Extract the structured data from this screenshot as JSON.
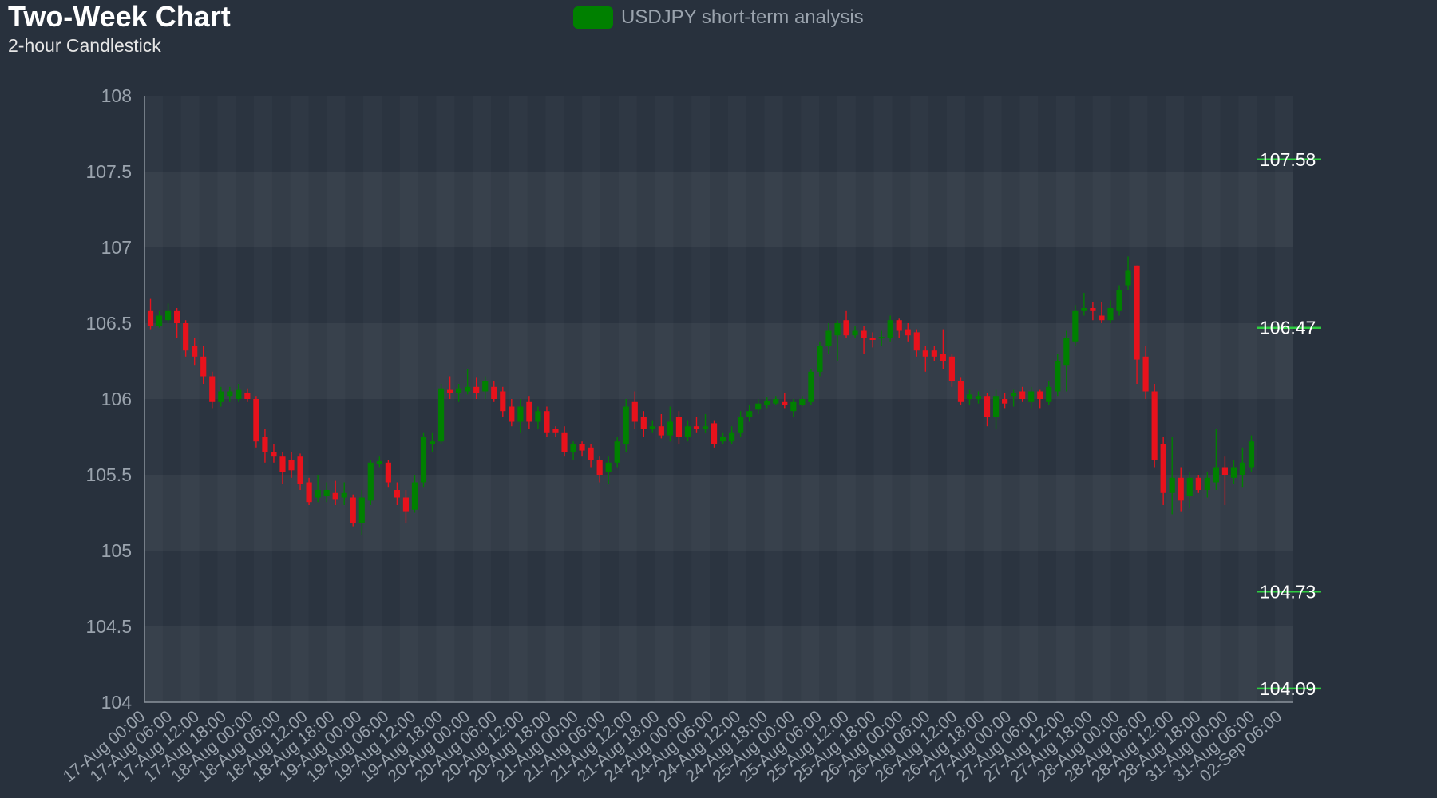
{
  "header": {
    "title": "Two-Week Chart",
    "subtitle": "2-hour Candlestick"
  },
  "legend": {
    "label": "USDJPY short-term analysis",
    "color": "#008000"
  },
  "colors": {
    "up": "#008000",
    "down": "#e8121c",
    "background": "#28313d",
    "level_line": "#2ecc40"
  },
  "chart_data": {
    "type": "candlestick",
    "title": "Two-Week Chart",
    "subtitle": "2-hour Candlestick",
    "series_name": "USDJPY short-term analysis",
    "ylim": [
      104,
      108
    ],
    "yticks": [
      "104",
      "104.5",
      "105",
      "105.5",
      "106",
      "106.5",
      "107",
      "107.5",
      "108"
    ],
    "xtick_labels": [
      "17-Aug 00:00",
      "17-Aug 06:00",
      "17-Aug 12:00",
      "17-Aug 18:00",
      "18-Aug 00:00",
      "18-Aug 06:00",
      "18-Aug 12:00",
      "18-Aug 18:00",
      "19-Aug 00:00",
      "19-Aug 06:00",
      "19-Aug 12:00",
      "19-Aug 18:00",
      "20-Aug 00:00",
      "20-Aug 06:00",
      "20-Aug 12:00",
      "20-Aug 18:00",
      "21-Aug 00:00",
      "21-Aug 06:00",
      "21-Aug 12:00",
      "21-Aug 18:00",
      "24-Aug 00:00",
      "24-Aug 06:00",
      "24-Aug 12:00",
      "24-Aug 18:00",
      "25-Aug 00:00",
      "25-Aug 06:00",
      "25-Aug 12:00",
      "25-Aug 18:00",
      "26-Aug 00:00",
      "26-Aug 06:00",
      "26-Aug 12:00",
      "26-Aug 18:00",
      "27-Aug 00:00",
      "27-Aug 06:00",
      "27-Aug 12:00",
      "27-Aug 18:00",
      "28-Aug 00:00",
      "28-Aug 06:00",
      "28-Aug 12:00",
      "28-Aug 18:00",
      "31-Aug 00:00",
      "31-Aug 06:00",
      "02-Sep 06:00"
    ],
    "levels": [
      107.58,
      106.47,
      104.73,
      104.09
    ],
    "grid": true,
    "legend_position": "top-center",
    "candles": [
      [
        106.58,
        106.48,
        106.66,
        106.46
      ],
      [
        106.48,
        106.55,
        106.58,
        106.47
      ],
      [
        106.52,
        106.58,
        106.63,
        106.5
      ],
      [
        106.58,
        106.5,
        106.6,
        106.4
      ],
      [
        106.5,
        106.32,
        106.52,
        106.28
      ],
      [
        106.35,
        106.28,
        106.4,
        106.22
      ],
      [
        106.28,
        106.15,
        106.35,
        106.1
      ],
      [
        106.15,
        105.98,
        106.18,
        105.94
      ],
      [
        105.98,
        106.05,
        106.08,
        105.95
      ],
      [
        106.02,
        106.05,
        106.08,
        105.98
      ],
      [
        106.0,
        106.06,
        106.1,
        105.98
      ],
      [
        106.04,
        106.0,
        106.07,
        105.98
      ],
      [
        106.0,
        105.72,
        106.02,
        105.68
      ],
      [
        105.75,
        105.65,
        105.8,
        105.58
      ],
      [
        105.65,
        105.62,
        105.7,
        105.58
      ],
      [
        105.62,
        105.52,
        105.65,
        105.44
      ],
      [
        105.6,
        105.53,
        105.65,
        105.48
      ],
      [
        105.62,
        105.44,
        105.64,
        105.4
      ],
      [
        105.45,
        105.32,
        105.48,
        105.3
      ],
      [
        105.35,
        105.4,
        105.5,
        105.32
      ],
      [
        105.36,
        105.4,
        105.45,
        105.32
      ],
      [
        105.38,
        105.34,
        105.46,
        105.3
      ],
      [
        105.35,
        105.38,
        105.45,
        105.3
      ],
      [
        105.35,
        105.18,
        105.37,
        105.16
      ],
      [
        105.18,
        105.35,
        105.4,
        105.1
      ],
      [
        105.33,
        105.58,
        105.6,
        105.3
      ],
      [
        105.57,
        105.59,
        105.62,
        105.55
      ],
      [
        105.58,
        105.45,
        105.6,
        105.42
      ],
      [
        105.4,
        105.35,
        105.45,
        105.3
      ],
      [
        105.35,
        105.26,
        105.4,
        105.18
      ],
      [
        105.27,
        105.45,
        105.5,
        105.25
      ],
      [
        105.45,
        105.75,
        105.78,
        105.42
      ],
      [
        105.7,
        105.72,
        105.78,
        105.65
      ],
      [
        105.72,
        106.07,
        106.1,
        105.7
      ],
      [
        106.06,
        106.04,
        106.15,
        106.0
      ],
      [
        106.04,
        106.07,
        106.1,
        105.98
      ],
      [
        106.05,
        106.08,
        106.2,
        106.03
      ],
      [
        106.08,
        106.04,
        106.14,
        106.0
      ],
      [
        106.05,
        106.12,
        106.15,
        106.0
      ],
      [
        106.08,
        106.0,
        106.12,
        105.98
      ],
      [
        106.05,
        105.92,
        106.08,
        105.88
      ],
      [
        105.95,
        105.85,
        106.0,
        105.82
      ],
      [
        105.85,
        105.95,
        106.0,
        105.78
      ],
      [
        105.98,
        105.85,
        106.02,
        105.8
      ],
      [
        105.85,
        105.92,
        105.95,
        105.8
      ],
      [
        105.92,
        105.78,
        105.95,
        105.75
      ],
      [
        105.8,
        105.78,
        105.82,
        105.75
      ],
      [
        105.78,
        105.65,
        105.82,
        105.62
      ],
      [
        105.65,
        105.7,
        105.72,
        105.6
      ],
      [
        105.7,
        105.66,
        105.72,
        105.62
      ],
      [
        105.68,
        105.6,
        105.7,
        105.55
      ],
      [
        105.6,
        105.5,
        105.62,
        105.45
      ],
      [
        105.52,
        105.58,
        105.62,
        105.44
      ],
      [
        105.58,
        105.72,
        105.75,
        105.55
      ],
      [
        105.7,
        105.95,
        106.0,
        105.65
      ],
      [
        105.98,
        105.85,
        106.05,
        105.8
      ],
      [
        105.88,
        105.8,
        105.92,
        105.75
      ],
      [
        105.8,
        105.82,
        105.86,
        105.78
      ],
      [
        105.82,
        105.76,
        105.9,
        105.74
      ],
      [
        105.76,
        105.85,
        105.95,
        105.72
      ],
      [
        105.88,
        105.75,
        105.92,
        105.7
      ],
      [
        105.75,
        105.82,
        105.86,
        105.72
      ],
      [
        105.82,
        105.8,
        105.88,
        105.78
      ],
      [
        105.8,
        105.82,
        105.9,
        105.78
      ],
      [
        105.84,
        105.7,
        105.86,
        105.68
      ],
      [
        105.72,
        105.75,
        105.78,
        105.7
      ],
      [
        105.72,
        105.78,
        105.82,
        105.7
      ],
      [
        105.78,
        105.88,
        105.92,
        105.75
      ],
      [
        105.88,
        105.92,
        105.96,
        105.85
      ],
      [
        105.93,
        105.97,
        106.0,
        105.9
      ],
      [
        105.96,
        105.99,
        106.01,
        105.94
      ],
      [
        105.97,
        106.0,
        106.02,
        105.96
      ],
      [
        105.98,
        105.96,
        106.04,
        105.94
      ],
      [
        105.92,
        105.98,
        106.0,
        105.88
      ],
      [
        105.96,
        106.0,
        106.02,
        105.95
      ],
      [
        105.98,
        106.18,
        106.2,
        105.96
      ],
      [
        106.18,
        106.35,
        106.38,
        106.15
      ],
      [
        106.35,
        106.45,
        106.5,
        106.3
      ],
      [
        106.42,
        106.5,
        106.52,
        106.25
      ],
      [
        106.52,
        106.42,
        106.58,
        106.4
      ],
      [
        106.42,
        106.45,
        106.48,
        106.4
      ],
      [
        106.45,
        106.4,
        106.48,
        106.3
      ],
      [
        106.4,
        106.39,
        106.44,
        106.34
      ],
      [
        106.4,
        106.41,
        106.45,
        106.35
      ],
      [
        106.4,
        106.52,
        106.55,
        106.38
      ],
      [
        106.52,
        106.45,
        106.53,
        106.4
      ],
      [
        106.46,
        106.42,
        106.5,
        106.38
      ],
      [
        106.44,
        106.32,
        106.46,
        106.28
      ],
      [
        106.32,
        106.28,
        106.35,
        106.18
      ],
      [
        106.32,
        106.28,
        106.35,
        106.25
      ],
      [
        106.3,
        106.25,
        106.46,
        106.2
      ],
      [
        106.28,
        106.12,
        106.3,
        106.08
      ],
      [
        106.12,
        105.98,
        106.14,
        105.96
      ],
      [
        106.0,
        106.03,
        106.06,
        105.96
      ],
      [
        106.0,
        106.02,
        106.05,
        105.97
      ],
      [
        106.02,
        105.88,
        106.04,
        105.82
      ],
      [
        105.88,
        106.02,
        106.06,
        105.8
      ],
      [
        106.0,
        105.97,
        106.04,
        105.94
      ],
      [
        106.02,
        106.04,
        106.06,
        105.95
      ],
      [
        106.05,
        106.0,
        106.08,
        105.98
      ],
      [
        105.98,
        106.05,
        106.08,
        105.94
      ],
      [
        106.05,
        106.0,
        106.06,
        105.94
      ],
      [
        105.98,
        106.08,
        106.12,
        105.96
      ],
      [
        106.05,
        106.25,
        106.3,
        106.02
      ],
      [
        106.22,
        106.4,
        106.45,
        106.05
      ],
      [
        106.38,
        106.58,
        106.62,
        106.35
      ],
      [
        106.58,
        106.6,
        106.7,
        106.55
      ],
      [
        106.6,
        106.58,
        106.64,
        106.52
      ],
      [
        106.55,
        106.52,
        106.64,
        106.5
      ],
      [
        106.52,
        106.6,
        106.65,
        106.5
      ],
      [
        106.58,
        106.72,
        106.75,
        106.55
      ],
      [
        106.75,
        106.85,
        106.94,
        106.72
      ],
      [
        106.88,
        106.26,
        106.88,
        106.1
      ],
      [
        106.28,
        106.05,
        106.35,
        106.0
      ],
      [
        106.05,
        105.6,
        106.1,
        105.55
      ],
      [
        105.7,
        105.38,
        105.75,
        105.3
      ],
      [
        105.38,
        105.48,
        105.75,
        105.24
      ],
      [
        105.48,
        105.33,
        105.55,
        105.26
      ],
      [
        105.36,
        105.48,
        105.52,
        105.28
      ],
      [
        105.48,
        105.4,
        105.5,
        105.38
      ],
      [
        105.4,
        105.48,
        105.52,
        105.35
      ],
      [
        105.45,
        105.55,
        105.8,
        105.4
      ],
      [
        105.55,
        105.5,
        105.62,
        105.3
      ],
      [
        105.48,
        105.55,
        105.6,
        105.44
      ],
      [
        105.5,
        105.58,
        105.68,
        105.42
      ],
      [
        105.55,
        105.72,
        105.76,
        105.52
      ]
    ]
  }
}
